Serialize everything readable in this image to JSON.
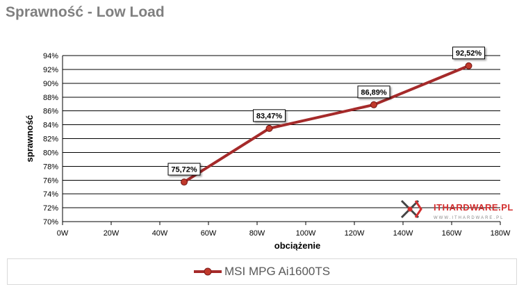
{
  "page_title": "Sprawność - Low Load",
  "watermark": {
    "brand": "ITHARDWARE.PL",
    "subtext": "WWW.ITHARDWARE.PL"
  },
  "colors": {
    "series": "#a52a2a",
    "marker": "#c0392b",
    "title": "#7f7f7f",
    "grid": "#000000"
  },
  "chart_data": {
    "type": "line",
    "title": "Sprawność - Low Load",
    "xlabel": "obciążenie",
    "ylabel": "sprawność",
    "xlim": [
      0,
      180
    ],
    "ylim": [
      70,
      94
    ],
    "x_ticks": [
      "0W",
      "20W",
      "40W",
      "60W",
      "80W",
      "100W",
      "120W",
      "140W",
      "160W",
      "180W"
    ],
    "y_ticks": [
      "70%",
      "72%",
      "74%",
      "76%",
      "78%",
      "80%",
      "82%",
      "84%",
      "86%",
      "88%",
      "90%",
      "92%",
      "94%"
    ],
    "grid": true,
    "legend": "bottom",
    "series": [
      {
        "name": "MSI MPG Ai1600TS",
        "x": [
          50,
          85,
          128,
          167
        ],
        "y": [
          75.72,
          83.47,
          86.89,
          92.52
        ],
        "labels": [
          "75,72%",
          "83,47%",
          "86,89%",
          "92,52%"
        ]
      }
    ]
  }
}
